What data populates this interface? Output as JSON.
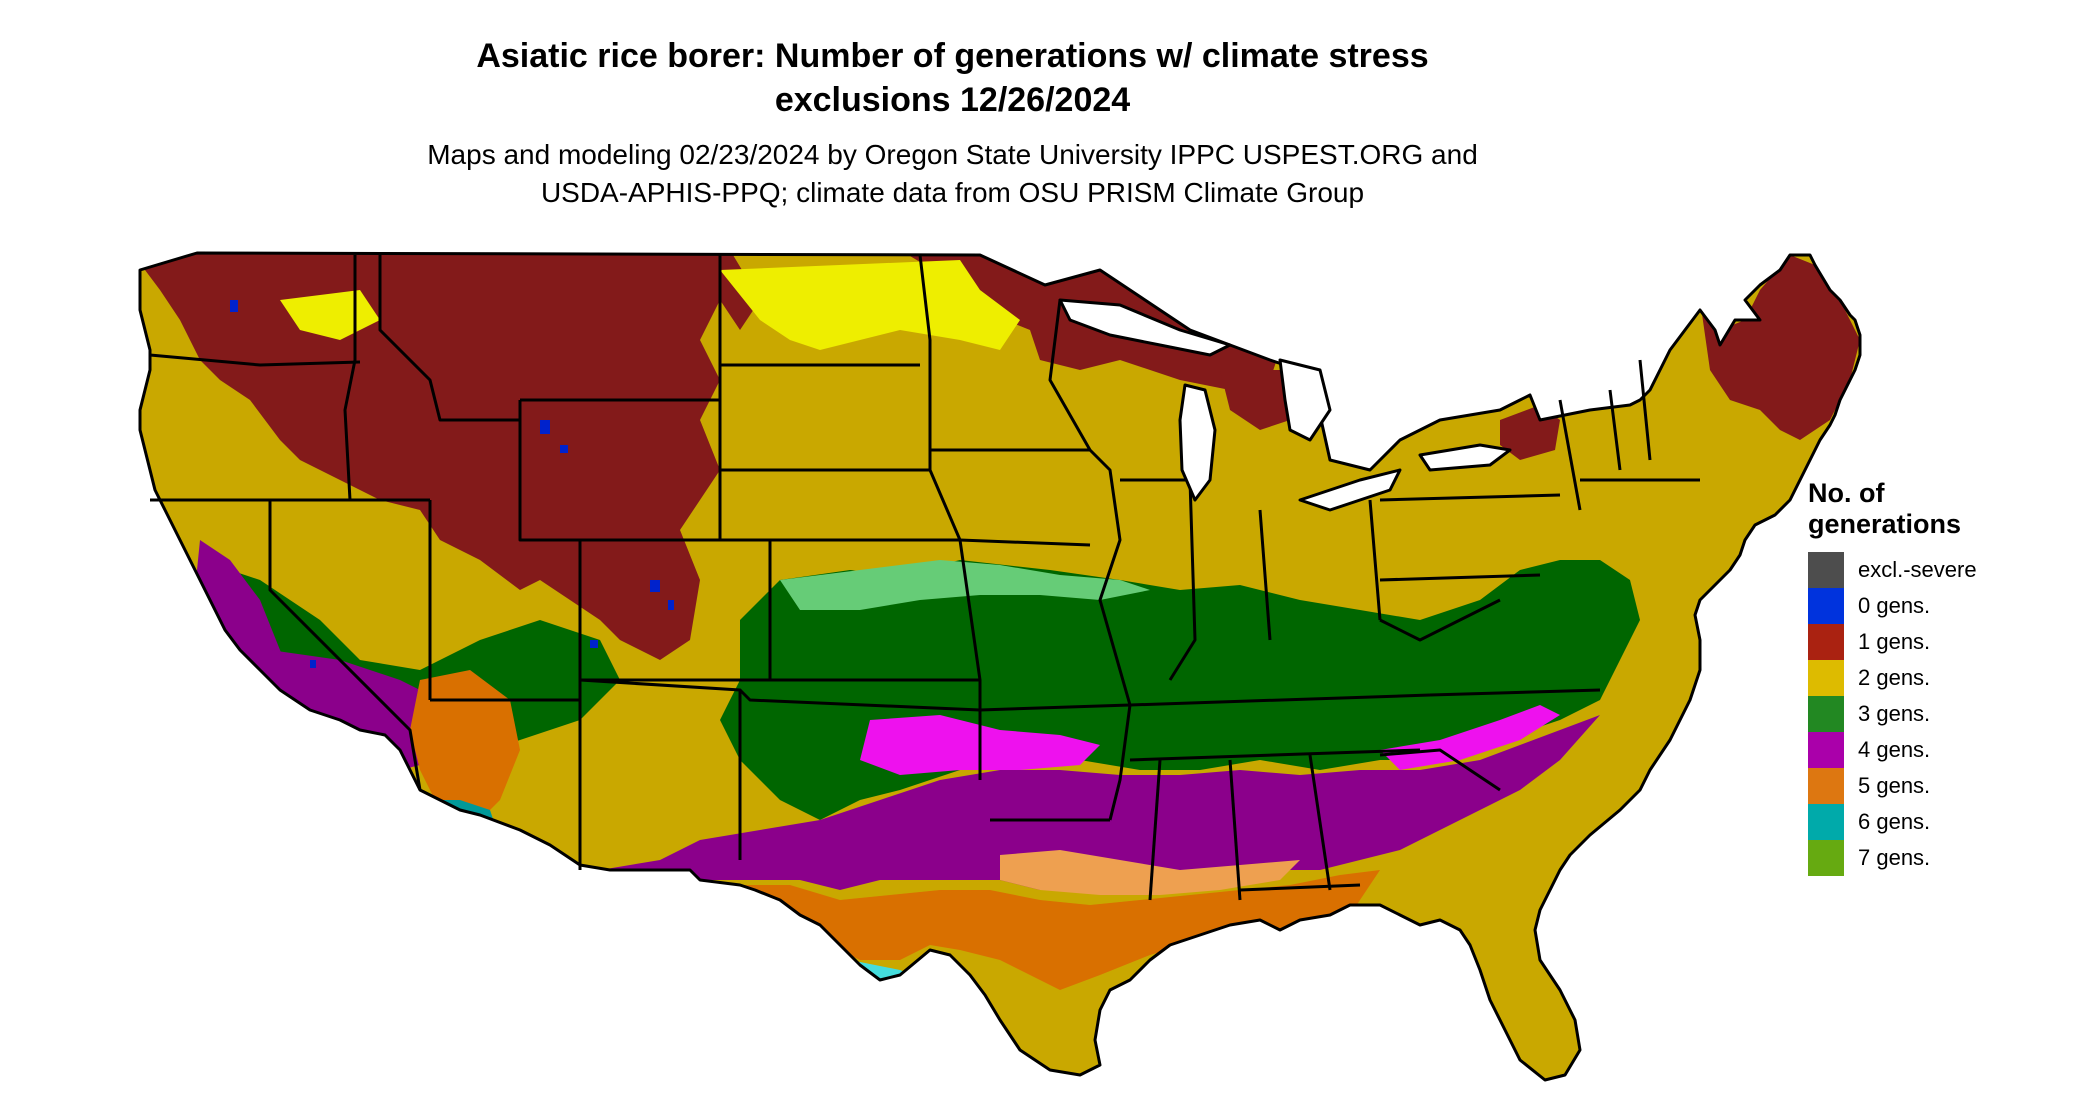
{
  "title_line1": "Asiatic rice borer: Number of generations w/ climate stress",
  "title_line2": "exclusions 12/26/2024",
  "subtitle_line1": "Maps and modeling 02/23/2024 by Oregon State University IPPC USPEST.ORG and",
  "subtitle_line2": "USDA-APHIS-PPQ; climate data from OSU PRISM Climate Group",
  "legend": {
    "title_line1": "No. of",
    "title_line2": "generations",
    "items": [
      {
        "label": "excl.-severe",
        "color": "#4d4d4d"
      },
      {
        "label": "0 gens.",
        "color": "#0033dd"
      },
      {
        "label": "1 gens.",
        "color": "#aa2211"
      },
      {
        "label": "2 gens.",
        "color": "#ddbb00"
      },
      {
        "label": "3 gens.",
        "color": "#228822"
      },
      {
        "label": "4 gens.",
        "color": "#aa00aa"
      },
      {
        "label": "5 gens.",
        "color": "#dd7711"
      },
      {
        "label": "6 gens.",
        "color": "#00aaaa"
      },
      {
        "label": "7 gens.",
        "color": "#66aa11"
      }
    ]
  },
  "map_colors": {
    "one_gen": "#831a1a",
    "two_gen": "#c9a800",
    "two_gen_bright": "#eeee00",
    "three_gen": "#006600",
    "three_gen_light": "#66cc77",
    "four_gen": "#8b008b",
    "four_gen_bright": "#ee11ee",
    "five_gen": "#d97000",
    "five_gen_light": "#eea050",
    "six_gen": "#009999",
    "six_gen_light": "#44dddd",
    "seven_gen": "#66aa11",
    "zero_gen": "#0022cc"
  }
}
